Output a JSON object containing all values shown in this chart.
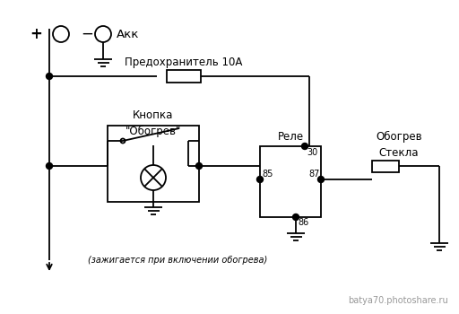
{
  "background_color": "#ffffff",
  "line_color": "#000000",
  "text_color": "#000000",
  "watermark": "batya70.photoshare.ru",
  "labels": {
    "plus": "+",
    "minus": "−",
    "akk": "Акк",
    "fuse": "Предохранитель 10А",
    "button_line1": "Кнопка",
    "button_line2": "\"Обогрев\"",
    "relay": "Реле",
    "heating_line1": "Обогрев",
    "heating_line2": "Стекла",
    "lamp_note": "(зажигается при включении обогрева)",
    "pin30": "30",
    "pin85": "85",
    "pin86": "86",
    "pin87": "87"
  },
  "figsize": [
    5.12,
    3.5
  ],
  "dpi": 100
}
